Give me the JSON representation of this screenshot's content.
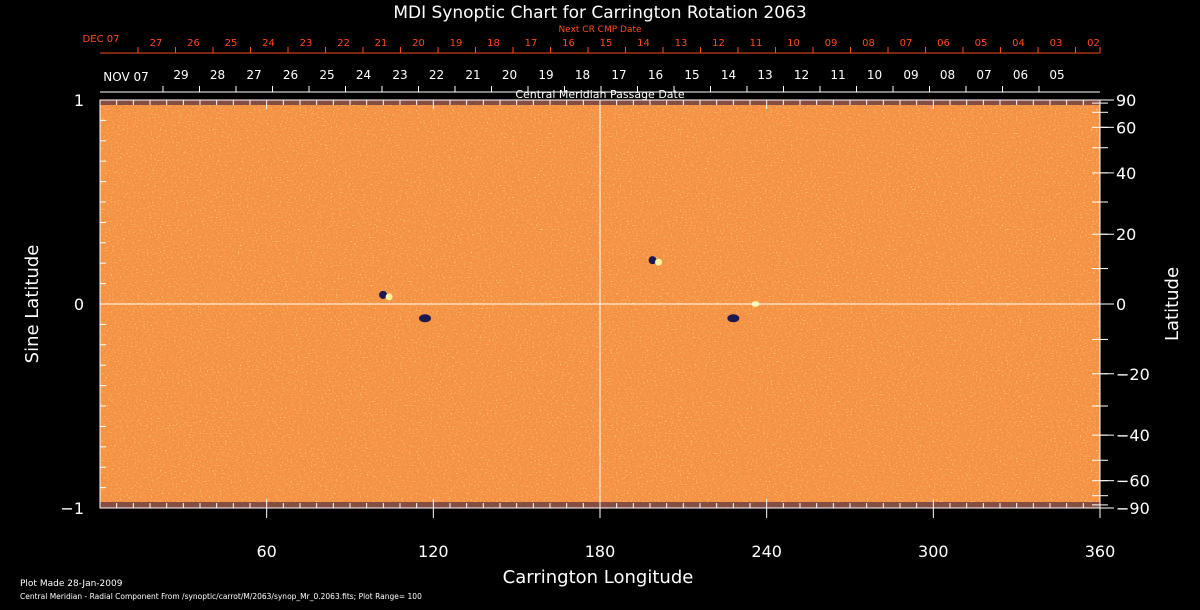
{
  "chart_data": {
    "type": "heatmap",
    "title": "MDI Synoptic Chart for Carrington Rotation 2063",
    "xlabel": "Carrington Longitude",
    "ylabel_left": "Sine Latitude",
    "ylabel_right": "Latitude",
    "xlim": [
      0,
      360
    ],
    "ylim": [
      -1,
      1
    ],
    "x_ticks": [
      60,
      120,
      180,
      240,
      300,
      360
    ],
    "y_ticks_left": [
      "1",
      "0",
      "−1"
    ],
    "y_ticks_right": [
      "90",
      "60",
      "40",
      "20",
      "0",
      "−20",
      "−40",
      "−60",
      "−90"
    ],
    "cmp_axis_label": "Central Meridian Passage Date",
    "cmp_month_label": "NOV 07",
    "cmp_days": [
      "29",
      "28",
      "27",
      "26",
      "25",
      "24",
      "23",
      "22",
      "21",
      "20",
      "19",
      "18",
      "17",
      "16",
      "15",
      "14",
      "13",
      "12",
      "11",
      "10",
      "09",
      "08",
      "07",
      "06",
      "05"
    ],
    "next_cmp_axis_label": "Next CR CMP Date",
    "next_cmp_month_label": "DEC 07",
    "next_cmp_days": [
      "27",
      "26",
      "25",
      "24",
      "23",
      "22",
      "21",
      "20",
      "19",
      "18",
      "17",
      "16",
      "15",
      "14",
      "13",
      "12",
      "11",
      "10",
      "09",
      "08",
      "07",
      "06",
      "05",
      "04",
      "03",
      "02"
    ],
    "plot_range": 100,
    "active_regions": [
      {
        "lon": 103,
        "sinlat": 0.04,
        "polarity": "bipolar"
      },
      {
        "lon": 117,
        "sinlat": -0.07,
        "polarity": "negative"
      },
      {
        "lon": 200,
        "sinlat": 0.21,
        "polarity": "bipolar"
      },
      {
        "lon": 228,
        "sinlat": -0.07,
        "polarity": "negative"
      },
      {
        "lon": 236,
        "sinlat": 0.0,
        "polarity": "positive"
      }
    ],
    "colors": {
      "background": "#e8441a",
      "positive": "#fff2a0",
      "negative": "#1c1850",
      "axis_cmp": "#ff4a1a",
      "axes": "#ffffff"
    }
  },
  "footer": {
    "plot_made": "Plot Made 28-Jan-2009",
    "description": "Central Meridian - Radial Component From /synoptic/carrot/M/2063/synop_Mr_0.2063.fits; Plot Range=  100"
  }
}
